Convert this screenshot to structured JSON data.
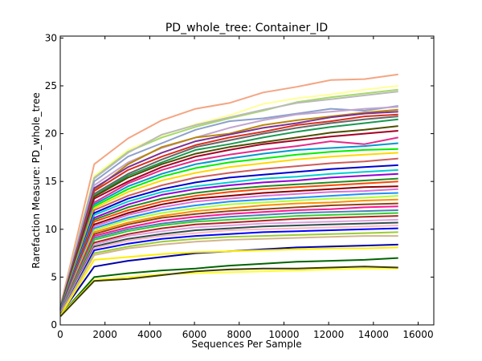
{
  "chart_data": {
    "type": "line",
    "title": "PD_whole_tree: Container_ID",
    "xlabel": "Sequences Per Sample",
    "ylabel": "Rarefaction Measure: PD_whole_tree",
    "xlim": [
      0,
      16700
    ],
    "ylim": [
      0,
      30.2
    ],
    "xticks": [
      0,
      2000,
      4000,
      6000,
      8000,
      10000,
      12000,
      14000,
      16000
    ],
    "yticks": [
      0,
      5,
      10,
      15,
      20,
      25,
      30
    ],
    "x": [
      10,
      1520,
      3030,
      4540,
      6050,
      7560,
      9070,
      10580,
      12090,
      13600,
      15110
    ],
    "grid": false,
    "legend": "none",
    "series": [
      {
        "color": "#f4a582",
        "values": [
          2.0,
          16.8,
          19.5,
          21.4,
          22.6,
          23.2,
          24.3,
          24.9,
          25.6,
          25.7,
          26.2
        ]
      },
      {
        "color": "#ffff99",
        "values": [
          1.9,
          15.6,
          18.3,
          19.8,
          21.0,
          21.9,
          23.1,
          23.7,
          24.1,
          24.6,
          25.0
        ]
      },
      {
        "color": "#a6d96a",
        "values": [
          1.9,
          15.4,
          18.1,
          19.6,
          20.7,
          21.6,
          22.4,
          23.3,
          23.8,
          24.2,
          24.6
        ]
      },
      {
        "color": "#bababa",
        "values": [
          1.9,
          15.3,
          18.0,
          19.9,
          20.9,
          21.7,
          22.5,
          23.2,
          23.6,
          24.0,
          24.4
        ]
      },
      {
        "color": "#8da0cb",
        "values": [
          1.8,
          15.0,
          17.6,
          19.0,
          20.4,
          21.3,
          21.6,
          22.1,
          22.6,
          22.4,
          22.9
        ]
      },
      {
        "color": "#c2a5cf",
        "values": [
          1.8,
          14.6,
          17.0,
          18.5,
          19.6,
          20.6,
          21.4,
          22.0,
          22.3,
          22.6,
          22.8
        ]
      },
      {
        "color": "#b8860b",
        "values": [
          1.7,
          14.1,
          16.8,
          18.6,
          19.6,
          20.0,
          20.9,
          21.4,
          21.8,
          22.2,
          22.5
        ]
      },
      {
        "color": "#7b3294",
        "values": [
          1.8,
          14.3,
          16.5,
          18.0,
          19.2,
          19.9,
          20.6,
          21.1,
          21.7,
          22.1,
          22.3
        ]
      },
      {
        "color": "#d7301f",
        "values": [
          1.7,
          14.0,
          16.2,
          17.6,
          18.8,
          19.6,
          20.2,
          20.9,
          21.3,
          21.8,
          22.0
        ]
      },
      {
        "color": "#666666",
        "values": [
          1.7,
          13.7,
          15.8,
          17.3,
          18.6,
          19.3,
          20.0,
          20.6,
          21.1,
          21.5,
          21.8
        ]
      },
      {
        "color": "#1a9850",
        "values": [
          1.7,
          13.5,
          15.6,
          17.0,
          18.3,
          18.9,
          19.6,
          20.2,
          20.7,
          21.1,
          21.5
        ]
      },
      {
        "color": "#4d4d00",
        "values": [
          1.7,
          13.4,
          15.4,
          16.8,
          17.9,
          18.6,
          19.1,
          19.6,
          20.1,
          20.4,
          20.8
        ]
      },
      {
        "color": "#a50026",
        "values": [
          1.6,
          13.2,
          15.0,
          16.5,
          17.6,
          18.3,
          18.9,
          19.3,
          19.7,
          20.0,
          20.3
        ]
      },
      {
        "color": "#e7298a",
        "values": [
          1.6,
          12.8,
          14.8,
          16.2,
          17.2,
          17.8,
          18.3,
          18.7,
          19.2,
          18.9,
          19.6
        ]
      },
      {
        "color": "#0099cc",
        "values": [
          1.6,
          12.6,
          14.5,
          15.8,
          16.8,
          17.4,
          17.9,
          18.3,
          18.5,
          18.7,
          19.0
        ]
      },
      {
        "color": "#00ee00",
        "values": [
          1.6,
          12.4,
          14.2,
          15.5,
          16.4,
          17.0,
          17.4,
          17.8,
          18.1,
          18.3,
          18.4
        ]
      },
      {
        "color": "#ffd700",
        "values": [
          1.5,
          12.2,
          13.9,
          15.1,
          15.9,
          16.5,
          16.9,
          17.3,
          17.6,
          17.8,
          18.0
        ]
      },
      {
        "color": "#cd5c5c",
        "values": [
          1.5,
          12.0,
          13.5,
          14.6,
          15.4,
          15.9,
          16.3,
          16.6,
          16.9,
          17.1,
          17.4
        ]
      },
      {
        "color": "#0000cd",
        "values": [
          1.5,
          11.7,
          13.2,
          14.2,
          14.9,
          15.4,
          15.7,
          16.0,
          16.3,
          16.5,
          16.7
        ]
      },
      {
        "color": "#00ced1",
        "values": [
          1.5,
          11.5,
          12.9,
          13.9,
          14.5,
          14.9,
          15.3,
          15.5,
          15.8,
          16.0,
          16.2
        ]
      },
      {
        "color": "#9400d3",
        "values": [
          1.5,
          11.2,
          12.6,
          13.6,
          14.2,
          14.6,
          14.9,
          15.1,
          15.4,
          15.6,
          15.8
        ]
      },
      {
        "color": "#228b22",
        "values": [
          1.4,
          11.0,
          12.3,
          13.2,
          13.8,
          14.2,
          14.5,
          14.7,
          14.9,
          15.1,
          15.3
        ]
      },
      {
        "color": "#ff4500",
        "values": [
          1.4,
          10.8,
          12.0,
          12.9,
          13.5,
          13.9,
          14.2,
          14.4,
          14.6,
          14.8,
          15.0
        ]
      },
      {
        "color": "#8b0000",
        "values": [
          1.4,
          10.5,
          11.7,
          12.6,
          13.2,
          13.5,
          13.8,
          14.0,
          14.2,
          14.4,
          14.5
        ]
      },
      {
        "color": "#da70d6",
        "values": [
          1.4,
          10.3,
          11.5,
          12.3,
          12.9,
          13.2,
          13.5,
          13.7,
          13.9,
          14.0,
          14.2
        ]
      },
      {
        "color": "#1e90ff",
        "values": [
          1.4,
          10.1,
          11.2,
          12.0,
          12.5,
          12.9,
          13.1,
          13.3,
          13.5,
          13.7,
          13.8
        ]
      },
      {
        "color": "#adff2f",
        "values": [
          1.3,
          9.9,
          11.0,
          11.7,
          12.2,
          12.6,
          12.8,
          13.0,
          13.2,
          13.3,
          13.5
        ]
      },
      {
        "color": "#ff8c00",
        "values": [
          1.3,
          9.7,
          10.7,
          11.4,
          11.9,
          12.2,
          12.5,
          12.7,
          12.8,
          13.0,
          13.1
        ]
      },
      {
        "color": "#8b4513",
        "values": [
          1.3,
          9.5,
          10.5,
          11.2,
          11.6,
          11.9,
          12.1,
          12.3,
          12.5,
          12.6,
          12.7
        ]
      },
      {
        "color": "#ff1493",
        "values": [
          1.3,
          9.3,
          10.2,
          10.9,
          11.3,
          11.6,
          11.8,
          12.0,
          12.1,
          12.3,
          12.4
        ]
      },
      {
        "color": "#4682b4",
        "values": [
          1.3,
          9.1,
          10.0,
          10.6,
          11.0,
          11.3,
          11.5,
          11.7,
          11.8,
          11.9,
          12.0
        ]
      },
      {
        "color": "#32cd32",
        "values": [
          1.2,
          8.9,
          9.8,
          10.4,
          10.8,
          11.0,
          11.2,
          11.4,
          11.5,
          11.6,
          11.7
        ]
      },
      {
        "color": "#b22222",
        "values": [
          1.2,
          8.6,
          9.5,
          10.1,
          10.5,
          10.7,
          10.9,
          11.1,
          11.2,
          11.3,
          11.4
        ]
      },
      {
        "color": "#dda0dd",
        "values": [
          1.2,
          8.4,
          9.3,
          9.8,
          10.2,
          10.4,
          10.6,
          10.7,
          10.8,
          10.9,
          11.0
        ]
      },
      {
        "color": "#2f4f4f",
        "values": [
          1.2,
          8.2,
          9.0,
          9.5,
          9.9,
          10.1,
          10.3,
          10.4,
          10.5,
          10.6,
          10.7
        ]
      },
      {
        "color": "#ffb6c1",
        "values": [
          1.2,
          8.0,
          8.8,
          9.3,
          9.6,
          9.9,
          10.0,
          10.1,
          10.2,
          10.3,
          10.4
        ]
      },
      {
        "color": "#0000ff",
        "values": [
          1.1,
          7.8,
          8.5,
          9.0,
          9.3,
          9.5,
          9.7,
          9.8,
          9.9,
          10.0,
          10.1
        ]
      },
      {
        "color": "#9acd32",
        "values": [
          1.1,
          7.5,
          8.2,
          8.7,
          9.0,
          9.2,
          9.3,
          9.4,
          9.5,
          9.6,
          9.7
        ]
      },
      {
        "color": "#d2b48c",
        "values": [
          1.1,
          7.3,
          8.0,
          8.4,
          8.7,
          8.9,
          9.0,
          9.1,
          9.2,
          9.3,
          9.3
        ]
      },
      {
        "color": "#0000aa",
        "values": [
          1.1,
          6.1,
          6.7,
          7.1,
          7.5,
          7.7,
          7.9,
          8.1,
          8.2,
          8.3,
          8.4
        ]
      },
      {
        "color": "#ffee00",
        "values": [
          1.0,
          6.8,
          7.1,
          7.4,
          7.6,
          7.7,
          7.8,
          7.9,
          8.0,
          8.0,
          8.1
        ]
      },
      {
        "color": "#006400",
        "values": [
          1.0,
          5.0,
          5.4,
          5.7,
          5.9,
          6.2,
          6.4,
          6.6,
          6.7,
          6.8,
          7.0
        ]
      },
      {
        "color": "#ffff33",
        "values": [
          1.0,
          4.7,
          5.0,
          5.3,
          5.4,
          5.5,
          5.6,
          5.7,
          5.8,
          5.9,
          5.9
        ]
      },
      {
        "color": "#3d3d00",
        "values": [
          0.9,
          4.6,
          4.8,
          5.2,
          5.6,
          5.8,
          5.9,
          5.9,
          6.0,
          6.1,
          6.0
        ]
      }
    ]
  }
}
